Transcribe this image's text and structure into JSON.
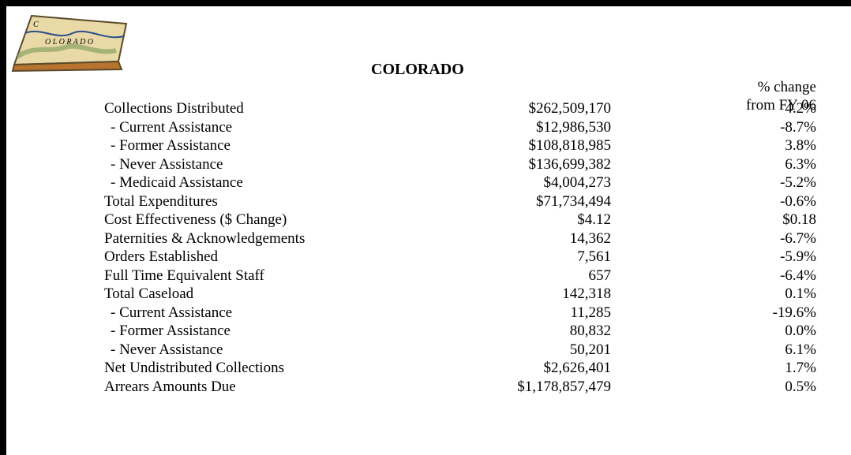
{
  "header": {
    "title": "COLORADO",
    "change_label": [
      "% change",
      "from FY 06"
    ]
  },
  "table": {
    "rows": [
      [
        "Collections Distributed",
        "$262,509,170",
        "4.2%"
      ],
      [
        "- Current Assistance",
        "$12,986,530",
        "-8.7%"
      ],
      [
        "- Former Assistance",
        "$108,818,985",
        "3.8%"
      ],
      [
        "- Never Assistance",
        "$136,699,382",
        "6.3%"
      ],
      [
        "- Medicaid Assistance",
        "$4,004,273",
        "-5.2%"
      ],
      [
        "Total Expenditures",
        "$71,734,494",
        "-0.6%"
      ],
      [
        "Cost Effectiveness ($ Change)",
        "$4.12",
        "$0.18"
      ],
      [
        "Paternities & Acknowledgements",
        "14,362",
        "-6.7%"
      ],
      [
        "Orders Established",
        "7,561",
        "-5.9%"
      ],
      [
        "Full Time Equivalent Staff",
        "657",
        "-6.4%"
      ],
      [
        "Total Caseload",
        "142,318",
        "0.1%"
      ],
      [
        "- Current Assistance",
        "11,285",
        "-19.6%"
      ],
      [
        "- Former Assistance",
        "80,832",
        "0.0%"
      ],
      [
        "- Never Assistance",
        "50,201",
        "6.1%"
      ],
      [
        "Net Undistributed Collections",
        "$2,626,401",
        "1.7%"
      ],
      [
        "Arrears Amounts Due",
        "$1,178,857,479",
        "0.5%"
      ]
    ]
  }
}
